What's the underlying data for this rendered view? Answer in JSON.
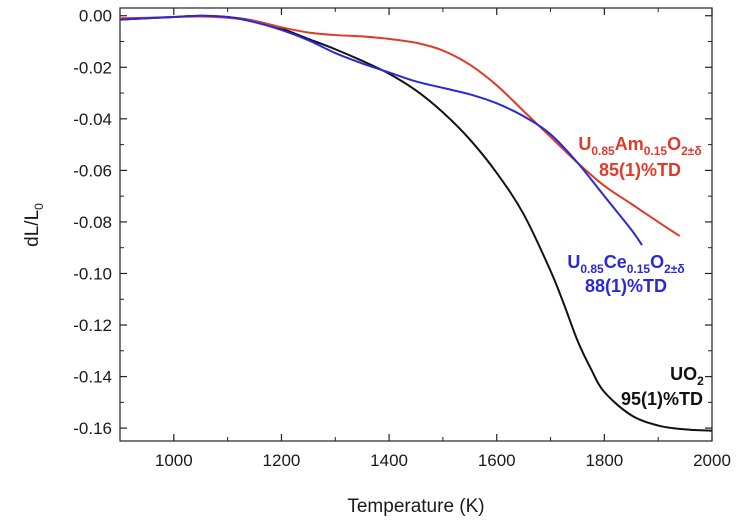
{
  "chart_data": {
    "type": "line",
    "title": "",
    "xlabel": "Temperature (K)",
    "ylabel": "dL/L",
    "ylabel_subscript": "0",
    "xlim": [
      900,
      2000
    ],
    "ylim": [
      -0.165,
      0.003
    ],
    "xticks": [
      1000,
      1200,
      1400,
      1600,
      1800,
      2000
    ],
    "yticks": [
      0.0,
      -0.02,
      -0.04,
      -0.06,
      -0.08,
      -0.1,
      -0.12,
      -0.14,
      -0.16
    ],
    "xtick_labels": [
      "1000",
      "1200",
      "1400",
      "1600",
      "1800",
      "2000"
    ],
    "ytick_labels": [
      "0.00",
      "-0.02",
      "-0.04",
      "-0.06",
      "-0.08",
      "-0.10",
      "-0.12",
      "-0.14",
      "-0.16"
    ],
    "grid": false,
    "legend": "none",
    "series": [
      {
        "id": "uo2",
        "color": "#111111",
        "x": [
          900,
          950,
          1000,
          1050,
          1100,
          1150,
          1200,
          1250,
          1300,
          1350,
          1400,
          1450,
          1500,
          1550,
          1600,
          1650,
          1700,
          1725,
          1750,
          1775,
          1800,
          1850,
          1900,
          1950,
          2000
        ],
        "y": [
          -0.0015,
          -0.001,
          -0.0005,
          0.0,
          -0.0005,
          -0.002,
          -0.005,
          -0.009,
          -0.013,
          -0.0175,
          -0.0225,
          -0.029,
          -0.0375,
          -0.048,
          -0.061,
          -0.077,
          -0.099,
          -0.112,
          -0.126,
          -0.137,
          -0.146,
          -0.155,
          -0.159,
          -0.1605,
          -0.161
        ]
      },
      {
        "id": "uamo2",
        "color": "#e03a2a",
        "x": [
          900,
          950,
          1000,
          1050,
          1100,
          1150,
          1200,
          1250,
          1300,
          1350,
          1400,
          1450,
          1500,
          1550,
          1600,
          1650,
          1700,
          1750,
          1800,
          1850,
          1900,
          1940
        ],
        "y": [
          -0.001,
          -0.0008,
          -0.0005,
          -0.0003,
          -0.0008,
          -0.002,
          -0.0045,
          -0.0065,
          -0.0075,
          -0.008,
          -0.009,
          -0.0105,
          -0.0135,
          -0.019,
          -0.027,
          -0.037,
          -0.047,
          -0.057,
          -0.066,
          -0.073,
          -0.08,
          -0.0855
        ]
      },
      {
        "id": "uceo2",
        "color": "#2929d8",
        "x": [
          900,
          950,
          1000,
          1050,
          1100,
          1150,
          1200,
          1250,
          1300,
          1350,
          1400,
          1450,
          1500,
          1550,
          1600,
          1650,
          1700,
          1750,
          1800,
          1850,
          1870
        ],
        "y": [
          -0.0015,
          -0.001,
          -0.0005,
          0.0,
          -0.0005,
          -0.0025,
          -0.0055,
          -0.0095,
          -0.0145,
          -0.0185,
          -0.022,
          -0.0255,
          -0.028,
          -0.0305,
          -0.034,
          -0.039,
          -0.046,
          -0.057,
          -0.07,
          -0.083,
          -0.089
        ]
      }
    ],
    "annotations": [
      {
        "id": "am",
        "color": "#e03a2a",
        "line1": {
          "base1": "U",
          "sub1": "0.85",
          "base2": "Am",
          "sub2": "0.15",
          "base3": "O",
          "sub3": "2±δ"
        },
        "line2": "85(1)%TD"
      },
      {
        "id": "ce",
        "color": "#2929d8",
        "line1": {
          "base1": "U",
          "sub1": "0.85",
          "base2": "Ce",
          "sub2": "0.15",
          "base3": "O",
          "sub3": "2±δ"
        },
        "line2": "88(1)%TD"
      },
      {
        "id": "uo2",
        "color": "#111111",
        "line1": {
          "base1": "UO",
          "sub1": "2"
        },
        "line2": "95(1)%TD"
      }
    ]
  }
}
